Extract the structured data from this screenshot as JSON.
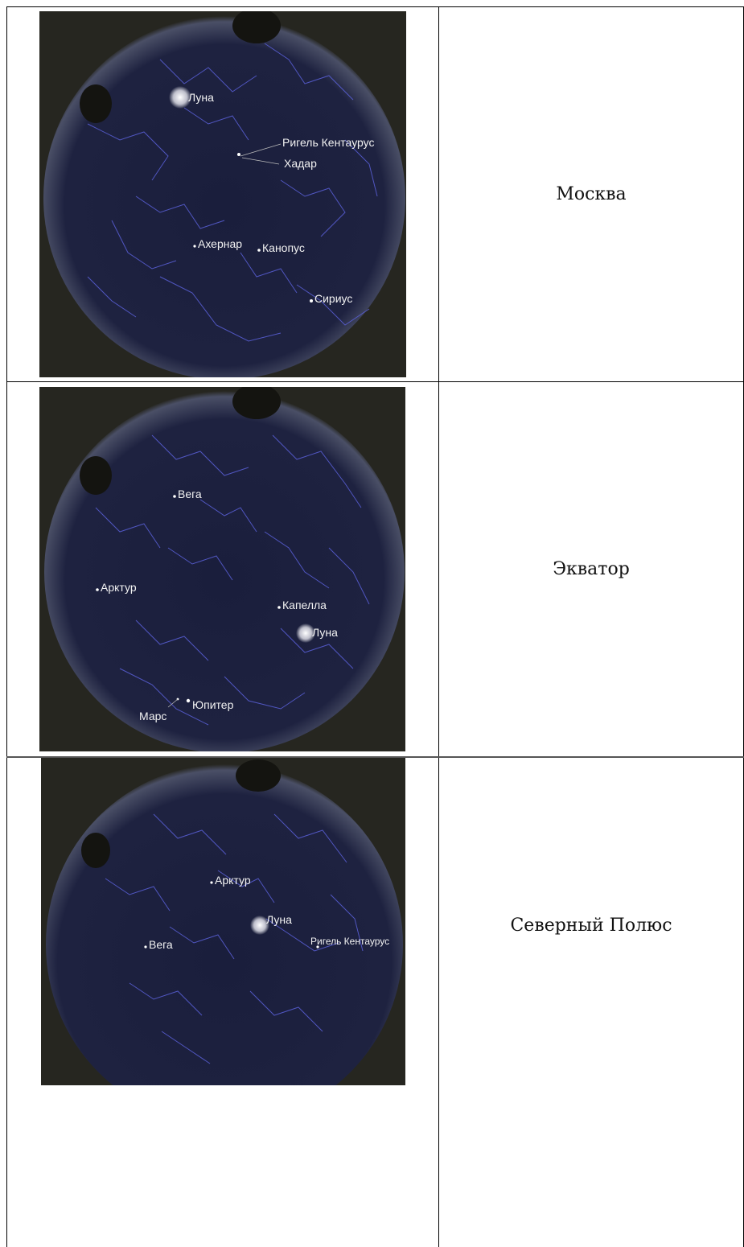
{
  "rows": [
    {
      "location": "Москва",
      "labels": [
        "Луна",
        "Ригель Кентаурус",
        "Хадар",
        "Ахернар",
        "Канопус",
        "Сириус"
      ]
    },
    {
      "location": "Экватор",
      "labels": [
        "Вега",
        "Арктур",
        "Капелла",
        "Луна",
        "Юпитер",
        "Марс"
      ]
    },
    {
      "location": "Северный Полюс",
      "labels": [
        "Арктур",
        "Луна",
        "Вега",
        "Ригель Кентаурус"
      ]
    }
  ],
  "colors": {
    "sky_center": "#1a1e3c",
    "sky_edge": "#3a3f5a",
    "constellation_lines": "#5a60d8",
    "ground": "#262620",
    "label": "#f2f2f2"
  }
}
